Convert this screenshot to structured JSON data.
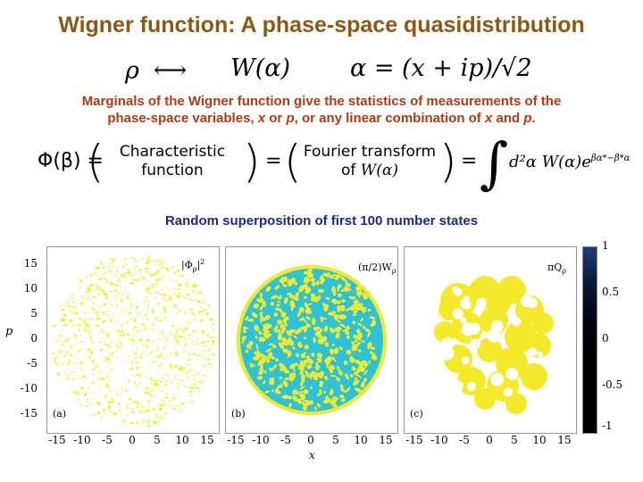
{
  "title": "Wigner function: A phase-space quasidistribution",
  "eq1": {
    "rho": "ρ",
    "arrow": "⟷",
    "wigner": "W(α)",
    "alpha_def": "α = (x + ip)/√2"
  },
  "note": {
    "line1": "Marginals of the Wigner function give the statistics of measurements of the",
    "line2_prefix": "phase-space variables, ",
    "x": "x",
    "or": " or ",
    "p": "p",
    "middle": ", or any linear combination of ",
    "x2": "x",
    "and": " and ",
    "p2": "p",
    "end": "."
  },
  "eq2": {
    "phi": "Φ(β) =",
    "char_top": "Characteristic",
    "char_bot": "function",
    "eq": "=",
    "ft_top": "Fourier transform",
    "ft_bot_of": "of",
    "ft_bot_w": "W(α)",
    "eq2": "=",
    "integrand": "d²α W(α)e",
    "exponent": "βα*−β*α"
  },
  "subheading": "Random superposition of first 100 number states",
  "figure": {
    "y_axis_label": "p",
    "x_axis_label": "x",
    "y_ticks": [
      "15",
      "10",
      "5",
      "0",
      "-5",
      "-10",
      "-15"
    ],
    "x_ticks_a": [
      "-15",
      "-10",
      "-5",
      "0",
      "5",
      "10",
      "15"
    ],
    "x_ticks_b": [
      "-15",
      "-10",
      "-5",
      "0",
      "5",
      "10",
      "15"
    ],
    "x_ticks_c": [
      "-15",
      "-10",
      "-5",
      "0",
      "5",
      "10",
      "15"
    ],
    "panels": [
      {
        "corner": "(a)",
        "label_main": "|Φ",
        "label_sub": "ρ",
        "label_sup": "2",
        "label_end": "|"
      },
      {
        "corner": "(b)",
        "label_main": "(π/2)W",
        "label_sub": "ρ"
      },
      {
        "corner": "(c)",
        "label_main": "πQ",
        "label_sub": "ρ"
      }
    ],
    "colorbar_ticks": [
      "1",
      "0.5",
      "0",
      "-0.5",
      "-1"
    ],
    "colors": {
      "yellow": "#f5ea2a",
      "cyan": "#2ec2d9",
      "dark": "#000011",
      "colorbar_top": "#1d3e7a"
    }
  }
}
